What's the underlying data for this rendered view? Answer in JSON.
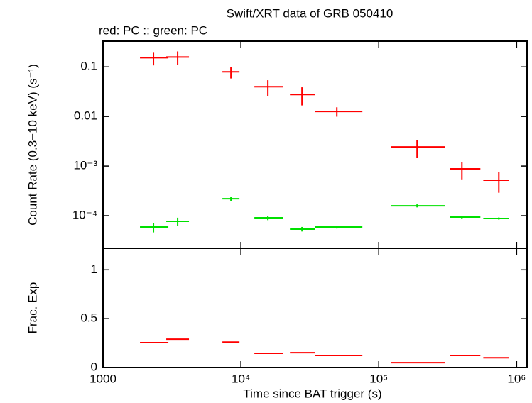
{
  "chart_data": [
    {
      "type": "errorbar",
      "title": "Swift/XRT data of GRB 050410",
      "subtitle": "red: PC  :: green: PC",
      "ylabel": "Count Rate (0.3−10 keV) (s⁻¹)",
      "xlog": true,
      "ylog": true,
      "xlim": [
        1000,
        1190000
      ],
      "ylim": [
        2.2e-05,
        0.33
      ],
      "xticks": [
        1000,
        10000,
        100000,
        1000000
      ],
      "yticks": [
        {
          "value": 0.1,
          "label": "0.1"
        },
        {
          "value": 0.01,
          "label": "0.01"
        },
        {
          "value": 0.001,
          "label": "10⁻³"
        },
        {
          "value": 0.0001,
          "label": "10⁻⁴"
        }
      ],
      "series": [
        {
          "color": "#ff0000",
          "x": [
            2323,
            3478,
            8472,
            15700,
            27750,
            49660,
            189700,
            401000,
            743000
          ],
          "xlo": [
            1854,
            2876,
            7345,
            12530,
            22690,
            34360,
            122400,
            327500,
            573000
          ],
          "xhi": [
            2980,
            4203,
            9770,
            20140,
            34360,
            76080,
            301500,
            545800,
            877000
          ],
          "values": [
            0.153,
            0.158,
            0.0794,
            0.0398,
            0.0277,
            0.0126,
            0.00243,
            0.00088,
            0.00052
          ],
          "yerr": [
            0.046,
            0.047,
            0.021,
            0.014,
            0.011,
            0.0027,
            0.00094,
            0.00034,
            0.00023
          ]
        },
        {
          "color": "#00e000",
          "x": [
            2323,
            3478,
            8472,
            15700,
            27750,
            49660,
            189700,
            401000,
            743000
          ],
          "xlo": [
            1854,
            2876,
            7345,
            12530,
            22690,
            34360,
            122400,
            327500,
            573000
          ],
          "xhi": [
            2980,
            4203,
            9770,
            20140,
            34360,
            76080,
            301500,
            545800,
            877000
          ],
          "values": [
            5.9e-05,
            7.7e-05,
            0.00022,
            9.06e-05,
            5.36e-05,
            5.9e-05,
            0.000158,
            9.36e-05,
            8.77e-05
          ],
          "yerr": [
            1.3e-05,
            1.4e-05,
            2.3e-05,
            9.4e-06,
            5.6e-06,
            4e-06,
            1.1e-05,
            6.4e-06,
            4.4e-06
          ]
        }
      ]
    },
    {
      "type": "errorbar",
      "xlabel": "Time since BAT trigger (s)",
      "ylabel": "Frac. Exp",
      "xlog": true,
      "ylog": false,
      "xlim": [
        1000,
        1190000
      ],
      "ylim": [
        0,
        1.22
      ],
      "xticks": [
        1000,
        {
          "value": 10000,
          "label": "10⁴"
        },
        {
          "value": 100000,
          "label": "10⁵"
        },
        {
          "value": 1000000,
          "label": "10⁶"
        }
      ],
      "yticks": [
        0,
        0.5,
        1
      ],
      "series": [
        {
          "color": "#ff0000",
          "xlo": [
            1854,
            2876,
            7345,
            12530,
            22690,
            34360,
            122400,
            327500,
            573000
          ],
          "xhi": [
            2980,
            4203,
            9770,
            20140,
            34360,
            76080,
            301500,
            545800,
            877000
          ],
          "values": [
            0.254,
            0.29,
            0.26,
            0.145,
            0.152,
            0.123,
            0.05,
            0.123,
            0.1
          ]
        }
      ]
    }
  ]
}
